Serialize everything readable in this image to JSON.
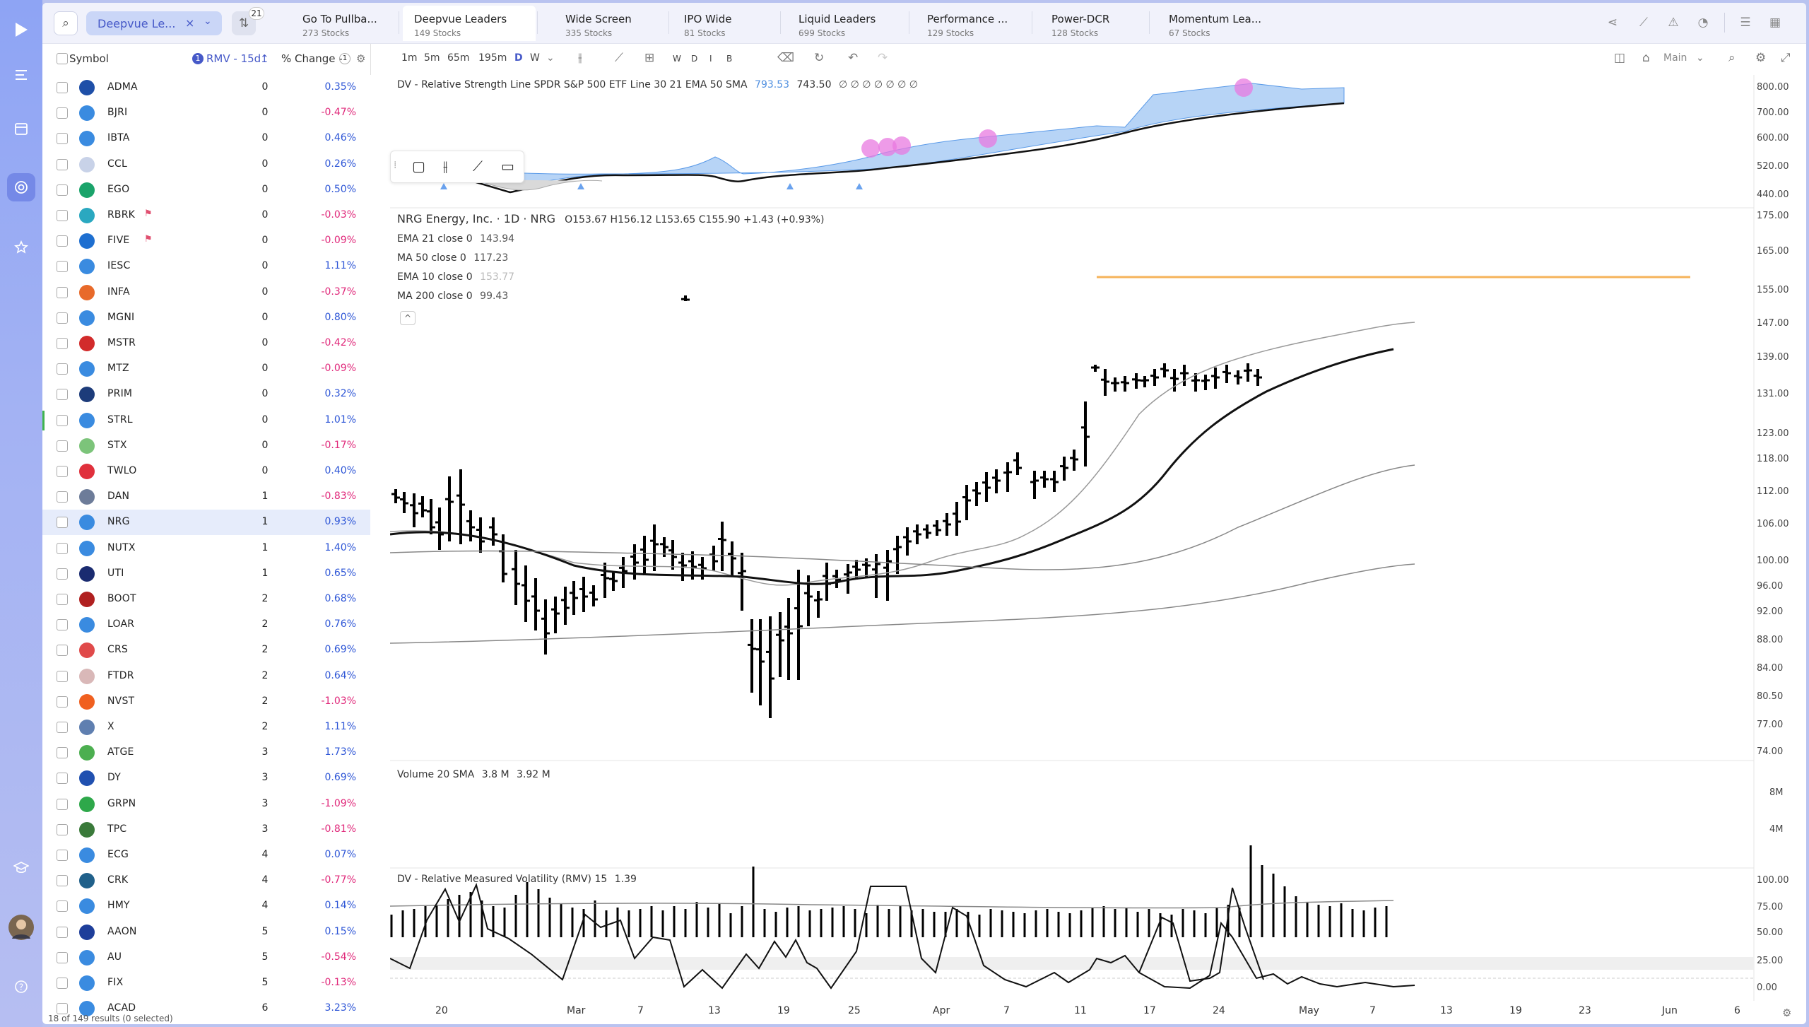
{
  "topbar": {
    "watchlist_name": "Deepvue Le...",
    "filter_badge": "21",
    "tabs": [
      {
        "title": "Go To Pullba...",
        "sub": "273 Stocks"
      },
      {
        "title": "Deepvue Leaders",
        "sub": "149 Stocks"
      },
      {
        "title": "Wide Screen",
        "sub": "335 Stocks"
      },
      {
        "title": "IPO Wide",
        "sub": "81 Stocks"
      },
      {
        "title": "Liquid Leaders",
        "sub": "699 Stocks"
      },
      {
        "title": "Performance ...",
        "sub": "129 Stocks"
      },
      {
        "title": "Power-DCR",
        "sub": "128 Stocks"
      },
      {
        "title": "Momentum Lea...",
        "sub": "67 Stocks"
      }
    ]
  },
  "list": {
    "col_symbol": "Symbol",
    "col_sort_badge": "1",
    "col_rmv": "RMV - 15d",
    "col_change": "% Change -",
    "col_change_badge": "1",
    "footer": "18 of 149 results (0 selected)",
    "rows": [
      {
        "sym": "ADMA",
        "rmv": "0",
        "chg": "0.35%",
        "logo": "#1e4fa8",
        "flag": false
      },
      {
        "sym": "BJRI",
        "rmv": "0",
        "chg": "-0.47%",
        "logo": "#3a8be0",
        "flag": false
      },
      {
        "sym": "IBTA",
        "rmv": "0",
        "chg": "0.46%",
        "logo": "#3a8be0",
        "flag": false
      },
      {
        "sym": "CCL",
        "rmv": "0",
        "chg": "0.26%",
        "logo": "#c8d2e8",
        "flag": false
      },
      {
        "sym": "EGO",
        "rmv": "0",
        "chg": "0.50%",
        "logo": "#1aa36a",
        "flag": false
      },
      {
        "sym": "RBRK",
        "rmv": "0",
        "chg": "-0.03%",
        "logo": "#2aa8c0",
        "flag": true
      },
      {
        "sym": "FIVE",
        "rmv": "0",
        "chg": "-0.09%",
        "logo": "#1e6fd0",
        "flag": true
      },
      {
        "sym": "IESC",
        "rmv": "0",
        "chg": "1.11%",
        "logo": "#3a8be0",
        "flag": false
      },
      {
        "sym": "INFA",
        "rmv": "0",
        "chg": "-0.37%",
        "logo": "#e86a2a",
        "flag": false
      },
      {
        "sym": "MGNI",
        "rmv": "0",
        "chg": "0.80%",
        "logo": "#3a8be0",
        "flag": false
      },
      {
        "sym": "MSTR",
        "rmv": "0",
        "chg": "-0.42%",
        "logo": "#d22b2b",
        "flag": false
      },
      {
        "sym": "MTZ",
        "rmv": "0",
        "chg": "-0.09%",
        "logo": "#3a8be0",
        "flag": false
      },
      {
        "sym": "PRIM",
        "rmv": "0",
        "chg": "0.32%",
        "logo": "#1d3c7a",
        "flag": false
      },
      {
        "sym": "STRL",
        "rmv": "0",
        "chg": "1.01%",
        "logo": "#3a8be0",
        "flag": false
      },
      {
        "sym": "STX",
        "rmv": "0",
        "chg": "-0.17%",
        "logo": "#7cc47a",
        "flag": false
      },
      {
        "sym": "TWLO",
        "rmv": "0",
        "chg": "0.40%",
        "logo": "#e0303c",
        "flag": false
      },
      {
        "sym": "DAN",
        "rmv": "1",
        "chg": "-0.83%",
        "logo": "#6d7c99",
        "flag": false
      },
      {
        "sym": "NRG",
        "rmv": "1",
        "chg": "0.93%",
        "logo": "#3a8be0",
        "flag": false
      },
      {
        "sym": "NUTX",
        "rmv": "1",
        "chg": "1.40%",
        "logo": "#3a8be0",
        "flag": false
      },
      {
        "sym": "UTI",
        "rmv": "1",
        "chg": "0.65%",
        "logo": "#1a2b70",
        "flag": false
      },
      {
        "sym": "BOOT",
        "rmv": "2",
        "chg": "0.68%",
        "logo": "#b02020",
        "flag": false
      },
      {
        "sym": "LOAR",
        "rmv": "2",
        "chg": "0.76%",
        "logo": "#3a8be0",
        "flag": false
      },
      {
        "sym": "CRS",
        "rmv": "2",
        "chg": "0.69%",
        "logo": "#e04a4a",
        "flag": false
      },
      {
        "sym": "FTDR",
        "rmv": "2",
        "chg": "0.64%",
        "logo": "#d9b8b8",
        "flag": false
      },
      {
        "sym": "NVST",
        "rmv": "2",
        "chg": "-1.03%",
        "logo": "#f06020",
        "flag": false
      },
      {
        "sym": "X",
        "rmv": "2",
        "chg": "1.11%",
        "logo": "#5f7fb0",
        "flag": false
      },
      {
        "sym": "ATGE",
        "rmv": "3",
        "chg": "1.73%",
        "logo": "#4caf50",
        "flag": false
      },
      {
        "sym": "DY",
        "rmv": "3",
        "chg": "0.69%",
        "logo": "#2050b0",
        "flag": false
      },
      {
        "sym": "GRPN",
        "rmv": "3",
        "chg": "-1.09%",
        "logo": "#2ea84a",
        "flag": false
      },
      {
        "sym": "TPC",
        "rmv": "3",
        "chg": "-0.81%",
        "logo": "#3a7a3a",
        "flag": false
      },
      {
        "sym": "ECG",
        "rmv": "4",
        "chg": "0.07%",
        "logo": "#3a8be0",
        "flag": false
      },
      {
        "sym": "CRK",
        "rmv": "4",
        "chg": "-0.77%",
        "logo": "#20608a",
        "flag": false
      },
      {
        "sym": "HMY",
        "rmv": "4",
        "chg": "0.14%",
        "logo": "#3a8be0",
        "flag": false
      },
      {
        "sym": "AAON",
        "rmv": "5",
        "chg": "0.15%",
        "logo": "#1e3e9a",
        "flag": false
      },
      {
        "sym": "AU",
        "rmv": "5",
        "chg": "-0.54%",
        "logo": "#3a8be0",
        "flag": false
      },
      {
        "sym": "FIX",
        "rmv": "5",
        "chg": "-0.13%",
        "logo": "#3a8be0",
        "flag": false
      },
      {
        "sym": "ACAD",
        "rmv": "6",
        "chg": "3.23%",
        "logo": "#3a8be0",
        "flag": false
      }
    ]
  },
  "toolbar": {
    "tf": [
      "1m",
      "5m",
      "65m",
      "195m",
      "D",
      "W"
    ],
    "letters": [
      "W",
      "D",
      "I",
      "B"
    ],
    "layout_name": "Main"
  },
  "chart": {
    "rs_title": "DV - Relative Strength Line SPDR S&P 500 ETF Line 30 21 EMA 50 SMA",
    "rs_v1": "793.53",
    "rs_v2": "743.50",
    "rs_tail": "∅ ∅ ∅ ∅ ∅ ∅ ∅",
    "main_title": "NRG Energy, Inc. · 1D · NRG",
    "ohlc": "O153.67  H156.12  L153.65  C155.90  +1.43 (+0.93%)",
    "studies": [
      {
        "name": "EMA 21 close 0",
        "val": "143.94"
      },
      {
        "name": "MA 50 close 0",
        "val": "117.23"
      },
      {
        "name": "EMA 10 close 0",
        "val": "153.77"
      },
      {
        "name": "MA 200 close 0",
        "val": "99.43"
      }
    ],
    "vol_title": "Volume 20 SMA",
    "vol_v1": "3.8 M",
    "vol_v2": "3.92 M",
    "rmv_title": "DV - Relative Measured Volatility (RMV) 15",
    "rmv_val": "1.39",
    "rs_axis": [
      "800.00",
      "700.00",
      "600.00",
      "520.00",
      "440.00"
    ],
    "price_axis": [
      "175.00",
      "165.00",
      "155.00",
      "147.00",
      "139.00",
      "131.00",
      "123.00",
      "118.00",
      "112.00",
      "106.00",
      "100.00",
      "96.00",
      "92.00",
      "88.00",
      "84.00",
      "80.50",
      "77.00",
      "74.00"
    ],
    "vol_axis": [
      "8M",
      "4M"
    ],
    "rmv_axis": [
      "100.00",
      "75.00",
      "50.00",
      "25.00",
      "0.00"
    ],
    "date_axis": [
      "20",
      "Mar",
      "7",
      "13",
      "19",
      "25",
      "Apr",
      "7",
      "11",
      "17",
      "24",
      "May",
      "7",
      "13",
      "19",
      "23",
      "Jun",
      "6"
    ]
  },
  "colors": {
    "accent": "#4659c8",
    "positive": "#2d55d6",
    "negative": "#e0287a",
    "rs_fill": "#b7d4f6",
    "highlight": "#e879e0",
    "orange_line": "#f5b35a"
  },
  "icons": {
    "rail": [
      "play-icon",
      "menu-icon",
      "calendar-icon",
      "target-icon",
      "star-icon",
      "graduation-icon",
      "avatar",
      "help-icon"
    ],
    "top_right": [
      "share-icon",
      "line-chart-icon",
      "alert-icon",
      "bell-icon",
      "list-icon",
      "grid-icon"
    ]
  }
}
